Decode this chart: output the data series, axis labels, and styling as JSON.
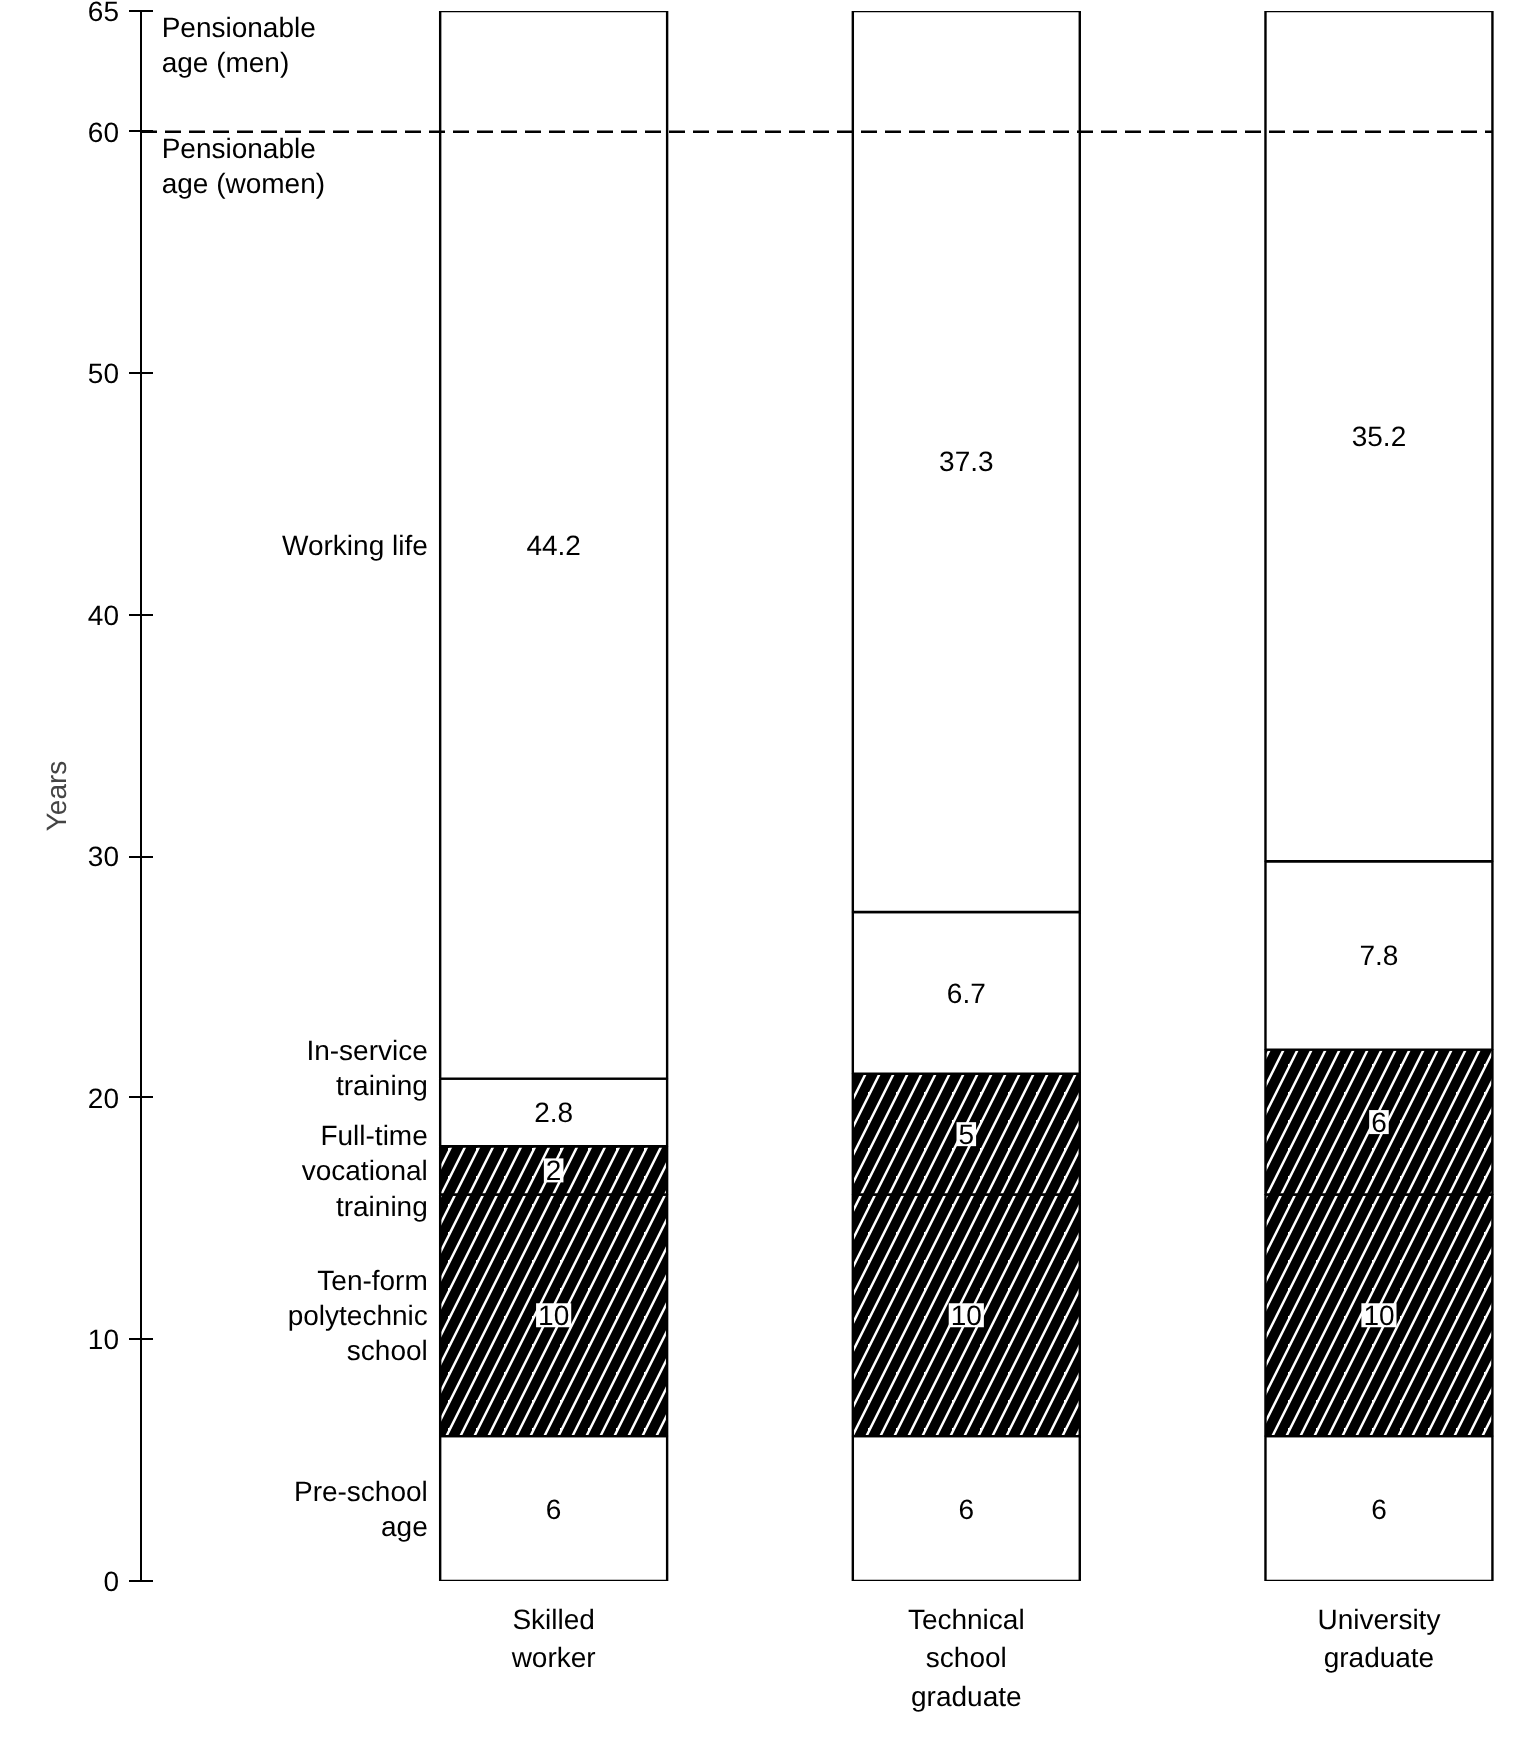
{
  "chart_data": {
    "type": "bar",
    "stacked": true,
    "ylabel": "Years",
    "categories": [
      "Skilled worker",
      "Technical school graduate",
      "University graduate"
    ],
    "series": [
      {
        "name": "Pre-school age",
        "color": "#ffffff",
        "values": [
          6,
          6,
          6
        ]
      },
      {
        "name": "Ten-form polytechnic school",
        "color": "#000000",
        "values": [
          10,
          10,
          10
        ]
      },
      {
        "name": "Full-time vocational training",
        "color": "#000000",
        "values": [
          2,
          5,
          6
        ]
      },
      {
        "name": "In-service training",
        "color": "#ffffff",
        "values": [
          2.8,
          6.7,
          7.8
        ]
      },
      {
        "name": "Working life",
        "color": "#ffffff",
        "values": [
          44.2,
          37.3,
          35.2
        ]
      }
    ],
    "ylim": [
      0,
      65
    ],
    "yticks": [
      0,
      10,
      20,
      30,
      40,
      50,
      60,
      65
    ],
    "grid": false,
    "data_labels": true,
    "ref_lines": [
      {
        "axis": "y",
        "value": 60,
        "label": "Pensionable age (women)",
        "line_style": "dashed"
      }
    ],
    "annotations": [
      "Pensionable age (men)"
    ]
  }
}
